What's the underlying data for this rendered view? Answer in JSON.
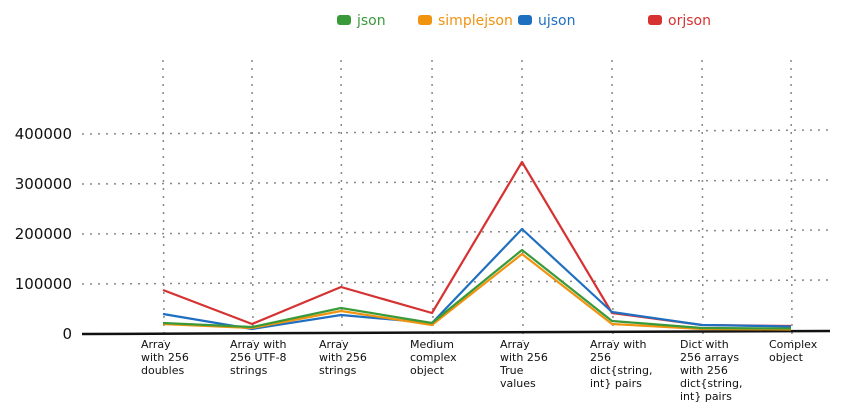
{
  "chart_data": {
    "type": "line",
    "title": "",
    "xlabel": "",
    "ylabel": "",
    "categories": [
      [
        "Array",
        "with 256",
        "doubles"
      ],
      [
        "Array with",
        "256 UTF-8",
        "strings"
      ],
      [
        "Array",
        "with 256",
        "strings"
      ],
      [
        "Medium",
        "complex",
        "object"
      ],
      [
        "Array",
        "with 256",
        "True",
        "values"
      ],
      [
        "Array with",
        "256",
        "dict{string,",
        "int} pairs"
      ],
      [
        "Dict with",
        "256 arrays",
        "with 256",
        "dict{string,",
        "int} pairs"
      ],
      [
        "Complex",
        "object"
      ]
    ],
    "ylim": [
      0,
      400000
    ],
    "yticks": [
      "0",
      "100000",
      "200000",
      "300000",
      "400000"
    ],
    "grid": true,
    "legend": "top",
    "series": [
      {
        "name": "json",
        "color": "#3a9a3a",
        "values": [
          20000,
          12000,
          50000,
          20000,
          166000,
          24000,
          10000,
          9000
        ]
      },
      {
        "name": "simplejson",
        "color": "#f0930f",
        "values": [
          18000,
          10000,
          44000,
          16000,
          158000,
          18000,
          8000,
          7000
        ]
      },
      {
        "name": "ujson",
        "color": "#1f6fc0",
        "values": [
          38000,
          8000,
          36000,
          20000,
          208000,
          42000,
          16000,
          13000
        ]
      },
      {
        "name": "orjson",
        "color": "#d63232",
        "values": [
          86000,
          18000,
          92000,
          40000,
          342000,
          40000,
          16000,
          14000
        ]
      }
    ]
  }
}
